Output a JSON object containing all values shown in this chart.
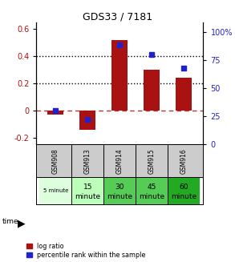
{
  "title": "GDS33 / 7181",
  "samples": [
    "GSM908",
    "GSM913",
    "GSM914",
    "GSM915",
    "GSM916"
  ],
  "log_ratios": [
    -0.03,
    -0.14,
    0.52,
    0.3,
    0.24
  ],
  "percentile_ranks": [
    30,
    22,
    88,
    80,
    68
  ],
  "time_labels_row1": [
    "",
    "15",
    "30",
    "45",
    "60"
  ],
  "time_labels_row2": [
    "5 minute",
    "minute",
    "minute",
    "minute",
    "minute"
  ],
  "time_colors": [
    "#ddffdd",
    "#bbffbb",
    "#55cc55",
    "#55cc55",
    "#22aa22"
  ],
  "bar_color": "#aa1111",
  "dot_color": "#2222cc",
  "ylim_left": [
    -0.25,
    0.65
  ],
  "ylim_right": [
    0,
    108.33
  ],
  "yticks_left": [
    -0.2,
    0.0,
    0.2,
    0.4,
    0.6
  ],
  "yticks_right": [
    0,
    25,
    50,
    75,
    100
  ],
  "ytick_labels_right": [
    "0",
    "25",
    "50",
    "75",
    "100%"
  ],
  "hlines": [
    0.2,
    0.4
  ],
  "zero_line": 0.0,
  "bg_color": "#ffffff"
}
